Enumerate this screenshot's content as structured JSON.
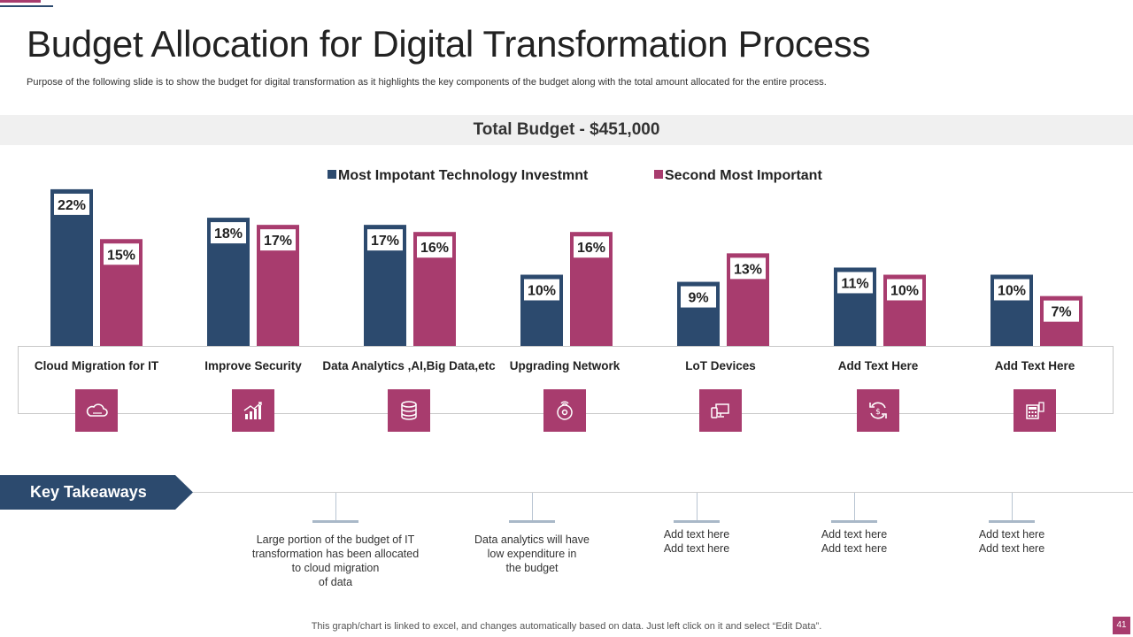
{
  "slide": {
    "title": "Budget Allocation for Digital Transformation Process",
    "subtitle": "Purpose of the following slide is to show the budget for digital transformation as it highlights the key components of the budget along with the total amount allocated for the entire process.",
    "total_budget": "Total Budget - $451,000",
    "footer": "This graph/chart is linked to excel,  and changes automatically based on data. Just left click on it and select “Edit Data”.",
    "page_number": "41"
  },
  "colors": {
    "series1": "#2c4a6e",
    "series2": "#a83c6e"
  },
  "chart_data": {
    "type": "bar",
    "title": "Total Budget - $451,000",
    "categories": [
      "Cloud Migration for IT",
      "Improve Security",
      "Data Analytics ,AI,Big Data,etc",
      "Upgrading Network",
      "LoT Devices",
      "Add Text Here",
      "Add Text Here"
    ],
    "series": [
      {
        "name": "Most Impotant Technology Investmnt",
        "values": [
          22,
          18,
          17,
          10,
          9,
          11,
          10
        ],
        "labels": [
          "22%",
          "18%",
          "17%",
          "10%",
          "9%",
          "11%",
          "10%"
        ]
      },
      {
        "name": "Second Most Important",
        "values": [
          15,
          17,
          16,
          16,
          13,
          10,
          7
        ],
        "labels": [
          "15%",
          "17%",
          "16%",
          "16%",
          "13%",
          "10%",
          "7%"
        ]
      }
    ],
    "ylim": [
      0,
      24
    ],
    "unit": "%",
    "legend_position": "top"
  },
  "category_icons": [
    "cloud-icon",
    "growth-chart-icon",
    "database-icon",
    "network-disc-icon",
    "devices-icon",
    "refresh-cycle-icon",
    "calculator-icon"
  ],
  "takeaways": {
    "heading": "Key Takeaways",
    "items": [
      {
        "lines": [
          "Large portion  of the budget of IT",
          "transformation  has been allocated",
          "to cloud migration",
          "of data"
        ]
      },
      {
        "lines": [
          "Data analytics will have",
          "low  expenditure  in",
          "the budget"
        ]
      },
      {
        "lines": [
          "Add text here",
          "Add text here"
        ]
      },
      {
        "lines": [
          "Add text here",
          "Add text here"
        ]
      },
      {
        "lines": [
          "Add text here",
          "Add text here"
        ]
      }
    ]
  }
}
